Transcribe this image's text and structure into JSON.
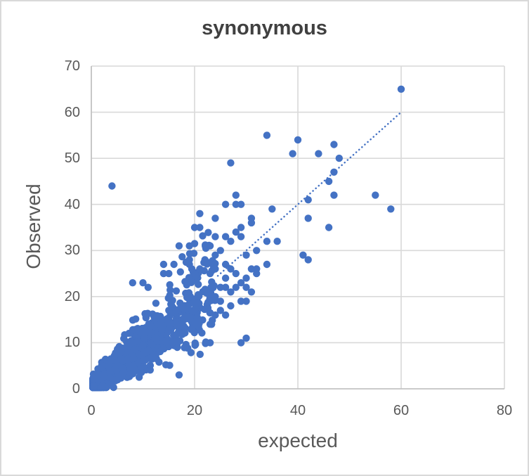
{
  "chart_data": {
    "type": "scatter",
    "title": "synonymous",
    "xlabel": "expected",
    "ylabel": "Observed",
    "xlim": [
      0,
      80
    ],
    "ylim": [
      0,
      70
    ],
    "x_ticks": [
      0,
      20,
      40,
      60,
      80
    ],
    "y_ticks": [
      0,
      10,
      20,
      30,
      40,
      50,
      60,
      70
    ],
    "grid": true,
    "legend": "none",
    "colors": {
      "marker": "#4472C4",
      "trendline": "#4472C4",
      "gridline": "#D9D9D9",
      "axis_line": "#BFBFBF",
      "title_text": "#404040",
      "label_text": "#595959"
    },
    "marker_radius_px": 5.2,
    "trendline": {
      "style": "dotted",
      "from": [
        24.5,
        24.5
      ],
      "to": [
        60,
        60
      ],
      "note": "approximately the line Observed = expected, visible from ~25 to 60"
    },
    "points": [
      [
        60,
        65
      ],
      [
        34,
        55
      ],
      [
        40,
        54
      ],
      [
        47,
        53
      ],
      [
        39,
        51
      ],
      [
        44,
        51
      ],
      [
        48,
        50
      ],
      [
        27,
        49
      ],
      [
        47,
        47
      ],
      [
        46,
        45
      ],
      [
        4,
        44
      ],
      [
        28,
        42
      ],
      [
        47,
        42
      ],
      [
        55,
        42
      ],
      [
        42,
        41
      ],
      [
        26,
        40
      ],
      [
        28,
        40
      ],
      [
        29,
        40
      ],
      [
        35,
        39
      ],
      [
        58,
        39
      ],
      [
        21,
        38
      ],
      [
        24,
        37
      ],
      [
        31,
        37
      ],
      [
        42,
        37
      ],
      [
        31,
        36
      ],
      [
        20,
        35
      ],
      [
        21,
        35
      ],
      [
        29,
        35
      ],
      [
        46,
        35
      ],
      [
        28,
        34
      ],
      [
        24,
        33
      ],
      [
        26,
        33
      ],
      [
        29,
        33
      ],
      [
        27,
        32
      ],
      [
        34,
        32
      ],
      [
        36,
        32
      ],
      [
        17,
        31
      ],
      [
        19,
        31
      ],
      [
        23,
        31
      ],
      [
        32,
        30
      ],
      [
        25,
        30
      ],
      [
        30,
        29
      ],
      [
        41,
        29
      ],
      [
        24,
        29
      ],
      [
        19,
        28
      ],
      [
        42,
        28
      ],
      [
        22,
        28
      ],
      [
        14,
        27
      ],
      [
        16,
        27
      ],
      [
        19,
        27
      ],
      [
        26,
        27
      ],
      [
        34,
        27
      ],
      [
        21,
        26
      ],
      [
        24,
        26
      ],
      [
        27,
        26
      ],
      [
        32,
        26
      ],
      [
        31,
        26
      ],
      [
        14,
        25
      ],
      [
        15,
        25
      ],
      [
        28,
        25
      ],
      [
        32,
        25
      ],
      [
        23,
        25
      ],
      [
        26,
        24
      ],
      [
        30,
        24
      ],
      [
        8,
        23
      ],
      [
        10,
        23
      ],
      [
        29,
        23
      ],
      [
        11,
        22
      ],
      [
        26,
        22
      ],
      [
        30,
        22
      ],
      [
        25,
        22
      ],
      [
        28,
        22
      ],
      [
        27,
        21
      ],
      [
        31,
        21
      ],
      [
        24,
        20
      ],
      [
        25,
        19
      ],
      [
        29,
        19
      ],
      [
        30,
        19
      ],
      [
        27,
        18
      ],
      [
        25,
        17
      ],
      [
        24,
        16
      ],
      [
        26,
        16
      ],
      [
        23,
        14
      ],
      [
        23,
        10
      ],
      [
        29,
        10
      ],
      [
        30,
        11
      ],
      [
        17,
        3
      ]
    ],
    "dense_cloud": {
      "description": "Very dense overlapping cloud of points hugging the diagonal from (0,0) to about (24,28); darkest near the origin, thinning toward upper right.",
      "seed": 20240601,
      "main": {
        "count": 900,
        "x_max": 24,
        "x_pow": 2.6,
        "ratio_base": 0.38,
        "ratio_span": 1.05,
        "noise": 4
      },
      "halo": {
        "count": 230,
        "x_base": 0.4,
        "x_span": 23,
        "x_pow": 1.9,
        "ratio_base": 0.45,
        "ratio_span": 1.15,
        "noise": 6
      },
      "y_cap_slope": 1.28,
      "y_cap_intercept": 7.5,
      "y_max": 44,
      "y_min": 0.3,
      "x_min": 0.3
    }
  }
}
